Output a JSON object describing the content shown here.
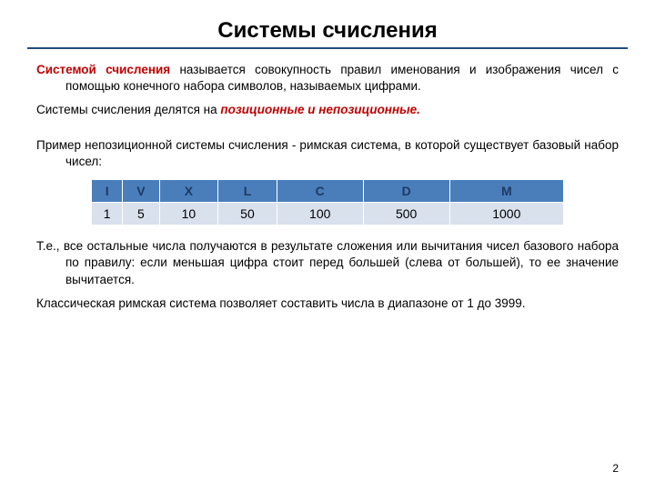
{
  "title": "Системы счисления",
  "paragraphs": {
    "p1_term": "Системой счисления",
    "p1_rest": " называется совокупность правил именования и изображения чисел с помощью конечного набора символов, называемых цифрами.",
    "p2_start": "Системы счисления делятся на ",
    "p2_highlight": "позиционные и непозиционные.",
    "p3": "Пример непозиционной системы счисления - римская система, в которой существует базовый набор чисел:",
    "p4": "Т.е., все остальные числа получаются в результате сложения или вычитания чисел базового набора по правилу: если меньшая цифра стоит перед большей (слева от большей), то ее значение вычитается.",
    "p5": "Классическая римская система позволяет составить числа в диапазоне от 1 до 3999."
  },
  "table": {
    "headers": [
      "I",
      "V",
      "X",
      "L",
      "C",
      "D",
      "M"
    ],
    "row": [
      "1",
      "5",
      "10",
      "50",
      "100",
      "500",
      "1000"
    ],
    "header_bg": "#4a7ebb",
    "header_color": "#1f3a5f",
    "cell_bg": "#d9e1ed",
    "cell_color": "#000000"
  },
  "page_number": "2",
  "colors": {
    "accent_red": "#c00000",
    "underline": "#1f4e79"
  }
}
